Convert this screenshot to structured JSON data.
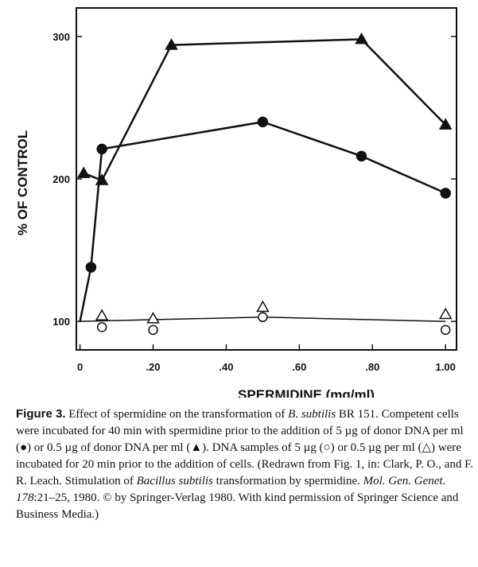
{
  "chart_data": {
    "type": "line",
    "title": "",
    "xlabel": "SPERMIDINE (mg/ml)",
    "ylabel": "% OF CONTROL",
    "xlim": [
      -0.01,
      1.03
    ],
    "ylim": [
      80,
      320
    ],
    "xticks": [
      {
        "value": 0,
        "label": "0"
      },
      {
        "value": 0.2,
        "label": ".20"
      },
      {
        "value": 0.4,
        "label": ".40"
      },
      {
        "value": 0.6,
        "label": ".60"
      },
      {
        "value": 0.8,
        "label": ".80"
      },
      {
        "value": 1.0,
        "label": "1.00"
      }
    ],
    "yticks": [
      {
        "value": 100,
        "label": "100"
      },
      {
        "value": 200,
        "label": "200"
      },
      {
        "value": 300,
        "label": "300"
      }
    ],
    "grid": false,
    "series": [
      {
        "marker": "filled-triangle",
        "x": [
          0.01,
          0.06,
          0.25,
          0.77,
          1.0
        ],
        "y": [
          204,
          199,
          294,
          298,
          238
        ]
      },
      {
        "marker": "filled-circle",
        "x": [
          0.0,
          0.03,
          0.06,
          0.5,
          0.77,
          1.0
        ],
        "y": [
          100,
          138,
          221,
          240,
          216,
          190
        ]
      },
      {
        "marker": "open-triangle",
        "x": [
          0.06,
          0.2,
          0.5,
          1.0
        ],
        "y": [
          104,
          102,
          110,
          105
        ]
      },
      {
        "marker": "open-circle",
        "x": [
          0.06,
          0.2,
          0.5,
          1.0
        ],
        "y": [
          96,
          94,
          103,
          94
        ]
      }
    ],
    "trend_line": {
      "x": [
        0.0,
        0.5,
        1.0
      ],
      "y": [
        100,
        103,
        100
      ]
    }
  },
  "caption": {
    "label": "Figure 3.",
    "parts": [
      {
        "t": " Effect of spermidine on the transformation of "
      },
      {
        "t": "B. subtilis",
        "i": true
      },
      {
        "t": " BR 151. Competent cells were incubated for 40 min with spermidine prior to the addition of 5 µg of donor DNA per ml (●) or 0.5 µg of donor DNA per ml (▲). DNA samples of 5 µg (○) or 0.5 µg per ml (△) were incubated for 20 min prior to the addition of cells. (Redrawn from Fig. 1, in: Clark, P. O., and F. R. Leach. Stimulation of "
      },
      {
        "t": "Bacillus subtilis",
        "i": true
      },
      {
        "t": " transformation by spermidine. "
      },
      {
        "t": "Mol. Gen. Genet. 178",
        "i": true
      },
      {
        "t": ":21–25, 1980. © by Springer-Verlag 1980. With kind permission of Springer Science and Business Media.)"
      }
    ]
  }
}
